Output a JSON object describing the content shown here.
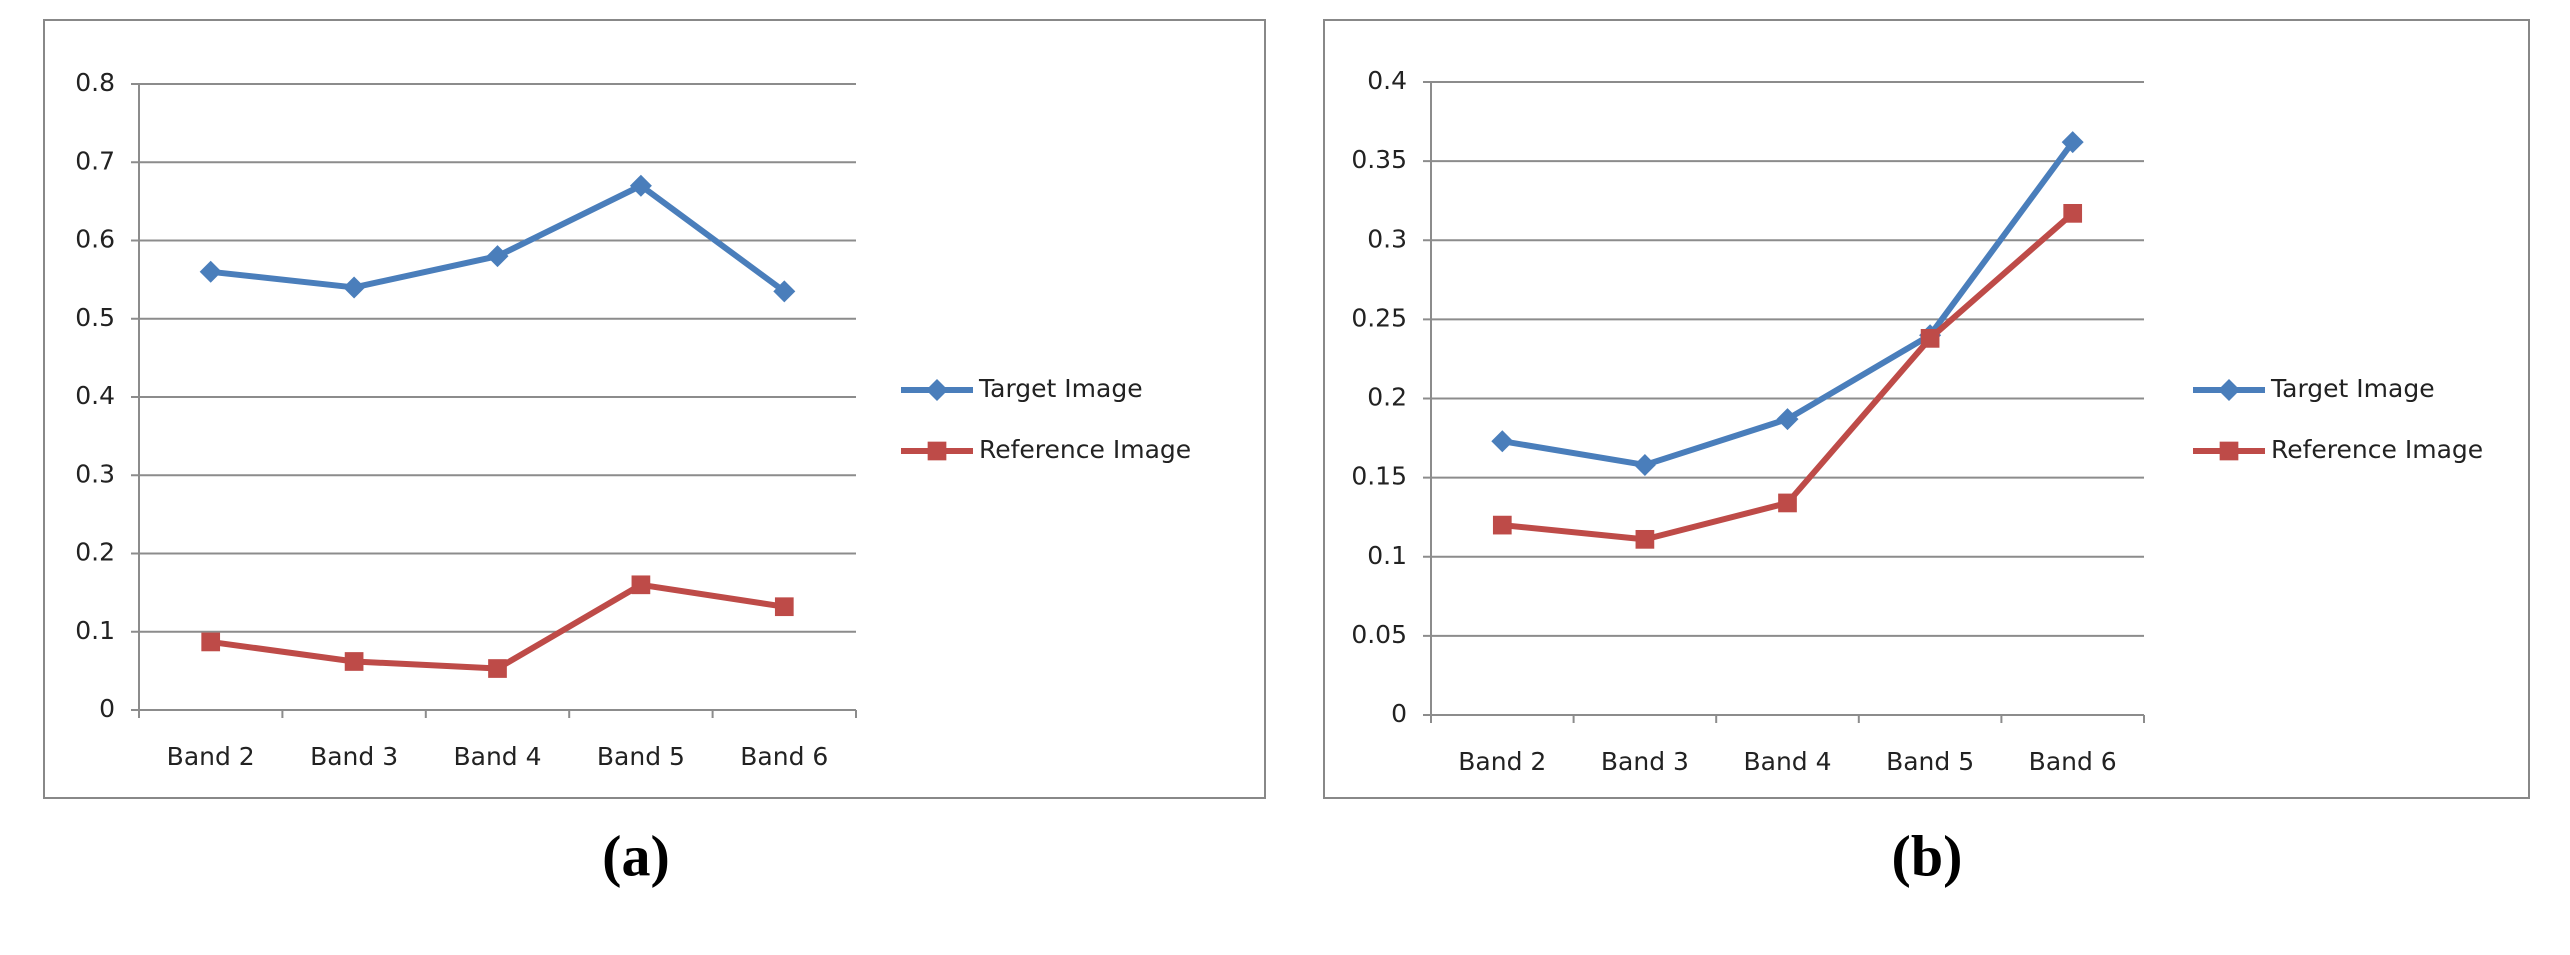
{
  "chart_data": [
    {
      "type": "line",
      "caption": "(a)",
      "categories": [
        "Band 2",
        "Band 3",
        "Band 4",
        "Band 5",
        "Band 6"
      ],
      "series": [
        {
          "name": "Target Image",
          "color": "#4a7ebb",
          "marker": "diamond",
          "values": [
            0.56,
            0.54,
            0.58,
            0.67,
            0.535
          ]
        },
        {
          "name": "Reference Image",
          "color": "#be4b48",
          "marker": "square",
          "values": [
            0.087,
            0.062,
            0.053,
            0.16,
            0.132
          ]
        }
      ],
      "ylim": [
        0,
        0.8
      ],
      "yticks": [
        0,
        0.1,
        0.2,
        0.3,
        0.4,
        0.5,
        0.6,
        0.7,
        0.8
      ],
      "grid": true,
      "legend": "right"
    },
    {
      "type": "line",
      "caption": "(b)",
      "categories": [
        "Band 2",
        "Band 3",
        "Band 4",
        "Band 5",
        "Band 6"
      ],
      "series": [
        {
          "name": "Target Image",
          "color": "#4a7ebb",
          "marker": "diamond",
          "values": [
            0.173,
            0.158,
            0.187,
            0.24,
            0.362
          ]
        },
        {
          "name": "Reference Image",
          "color": "#be4b48",
          "marker": "square",
          "values": [
            0.12,
            0.111,
            0.134,
            0.238,
            0.317
          ]
        }
      ],
      "ylim": [
        0,
        0.4
      ],
      "yticks": [
        0,
        0.05,
        0.1,
        0.15,
        0.2,
        0.25,
        0.3,
        0.35,
        0.4
      ],
      "grid": true,
      "legend": "right"
    }
  ]
}
